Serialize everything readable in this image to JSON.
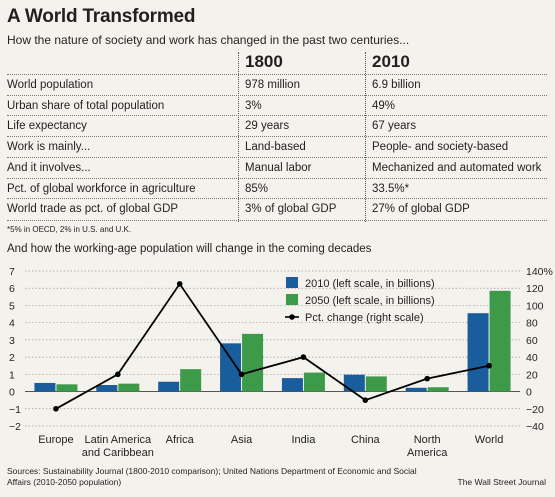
{
  "title": "A World Transformed",
  "subtitle": "How the nature of society and work has changed in the past two centuries...",
  "table": {
    "headers": [
      "",
      "1800",
      "2010"
    ],
    "rows": [
      [
        "World population",
        "978 million",
        "6.9 billion"
      ],
      [
        "Urban share of total population",
        "3%",
        "49%"
      ],
      [
        "Life expectancy",
        "29 years",
        "67 years"
      ],
      [
        "Work is mainly...",
        "Land-based",
        "People- and society-based"
      ],
      [
        "And it involves...",
        "Manual labor",
        "Mechanized and automated work"
      ],
      [
        "Pct. of global workforce in agriculture",
        "85%",
        "33.5%*"
      ],
      [
        "World trade as pct. of global GDP",
        "3% of global GDP",
        "27% of global GDP"
      ]
    ],
    "footnote": "*5% in OECD, 2% in U.S. and U.K."
  },
  "chart_subtitle": "And how the working-age population will change in the coming decades",
  "chart_data": {
    "type": "bar",
    "categories": [
      "Europe",
      "Latin America and Caribbean",
      "Africa",
      "Asia",
      "India",
      "China",
      "North America",
      "World"
    ],
    "category_lines": [
      [
        "Europe"
      ],
      [
        "Latin America",
        "and Caribbean"
      ],
      [
        "Africa"
      ],
      [
        "Asia"
      ],
      [
        "India"
      ],
      [
        "China"
      ],
      [
        "North",
        "America"
      ],
      [
        "World"
      ]
    ],
    "series": [
      {
        "name": "2010 (left scale, in billions)",
        "type": "bar",
        "axis": "left",
        "color": "#1a5d9c",
        "values": [
          0.5,
          0.38,
          0.57,
          2.8,
          0.78,
          0.98,
          0.22,
          4.55
        ]
      },
      {
        "name": "2050 (left scale, in billions)",
        "type": "bar",
        "axis": "left",
        "color": "#3d9a48",
        "values": [
          0.42,
          0.46,
          1.3,
          3.35,
          1.1,
          0.88,
          0.25,
          5.85
        ]
      },
      {
        "name": "Pct. change (right scale)",
        "type": "line",
        "axis": "right",
        "color": "#000000",
        "values": [
          -20,
          20,
          125,
          20,
          40,
          -10,
          15,
          30
        ]
      }
    ],
    "left_axis": {
      "min": -2,
      "max": 7,
      "ticks": [
        "−2",
        "−1",
        "0",
        "1",
        "2",
        "3",
        "4",
        "5",
        "6",
        "7"
      ]
    },
    "right_axis": {
      "min": -40,
      "max": 140,
      "ticks": [
        "−40",
        "−20",
        "0",
        "20",
        "40",
        "60",
        "80",
        "100",
        "120",
        "140%"
      ]
    },
    "legend_position": "top-right",
    "grid": true
  },
  "source": "Sources: Sustainability Journal (1800-2010 comparison); United Nations Department of Economic and Social Affairs (2010-2050 population)",
  "credit": "The Wall Street Journal"
}
